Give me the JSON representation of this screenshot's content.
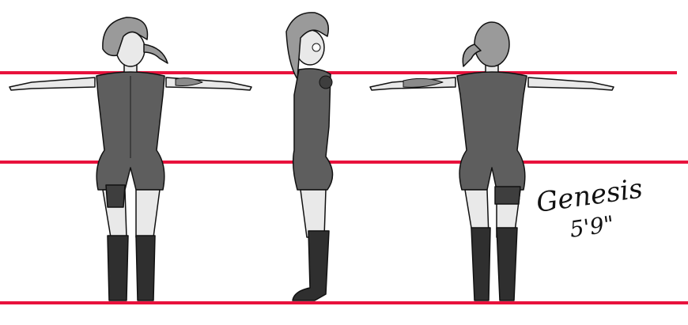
{
  "sheet": {
    "signature": {
      "name": "Genesis",
      "height": "5'9\""
    }
  },
  "colors": {
    "background": "#ffffff",
    "guide_line": "#e8123c",
    "outfit": "#5e5e5e",
    "outfit_dark": "#3e3e3e",
    "skin": "#e9e9e9",
    "hair": "#9a9a9a",
    "boots": "#2f2f2f",
    "outline": "#111111"
  },
  "icons": {
    "shoulder_patch": "x-emblem-icon",
    "cheek_mark": "x-emblem-icon"
  }
}
